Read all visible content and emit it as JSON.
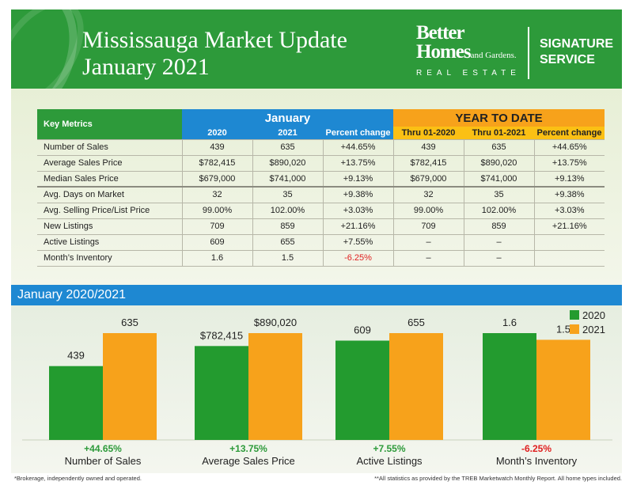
{
  "header": {
    "title_line1": "Mississauga Market Update",
    "title_line2": "January 2021",
    "logo_line1": "Better",
    "logo_line2": "Homes",
    "logo_line2_small": "and Gardens.",
    "logo_line3": "REAL ESTATE",
    "signature_line1": "SIGNATURE",
    "signature_line2": "SERVICE"
  },
  "table": {
    "key_metrics_label": "Key Metrics",
    "january_label": "January",
    "ytd_label": "YEAR TO DATE",
    "columns": [
      "2020",
      "2021",
      "Percent change",
      "Thru 01-2020",
      "Thru 01-2021",
      "Percent change"
    ],
    "rows": [
      {
        "metric": "Number of Sales",
        "v": [
          "439",
          "635",
          "+44.65%",
          "439",
          "635",
          "+44.65%"
        ]
      },
      {
        "metric": "Average Sales Price",
        "v": [
          "$782,415",
          "$890,020",
          "+13.75%",
          "$782,415",
          "$890,020",
          "+13.75%"
        ]
      },
      {
        "metric": "Median Sales Price",
        "v": [
          "$679,000",
          "$741,000",
          "+9.13%",
          "$679,000",
          "$741,000",
          "+9.13%"
        ]
      },
      {
        "metric": "Avg. Days on Market",
        "v": [
          "32",
          "35",
          "+9.38%",
          "32",
          "35",
          "+9.38%"
        ]
      },
      {
        "metric": "Avg. Selling Price/List Price",
        "v": [
          "99.00%",
          "102.00%",
          "+3.03%",
          "99.00%",
          "102.00%",
          "+3.03%"
        ]
      },
      {
        "metric": "New Listings",
        "v": [
          "709",
          "859",
          "+21.16%",
          "709",
          "859",
          "+21.16%"
        ]
      },
      {
        "metric": "Active Listings",
        "v": [
          "609",
          "655",
          "+7.55%",
          "–",
          "–",
          ""
        ]
      },
      {
        "metric": "Month’s Inventory",
        "v": [
          "1.6",
          "1.5",
          "-6.25%",
          "–",
          "–",
          ""
        ]
      }
    ]
  },
  "chart_band_label": "January 2020/2021",
  "chart_data": {
    "type": "bar",
    "categories": [
      "Number of Sales",
      "Average Sales Price",
      "Active Listings",
      "Month’s Inventory"
    ],
    "series": [
      {
        "name": "2020",
        "values": [
          439,
          782415,
          609,
          1.6
        ],
        "labels": [
          "439",
          "$782,415",
          "609",
          "1.6"
        ]
      },
      {
        "name": "2021",
        "values": [
          635,
          890020,
          655,
          1.5
        ],
        "labels": [
          "635",
          "$890,020",
          "655",
          "1.5"
        ]
      }
    ],
    "percent_changes": [
      "+44.65%",
      "+13.75%",
      "+7.55%",
      "-6.25%"
    ],
    "colors": {
      "2020": "#239b2f",
      "2021": "#f7a21b",
      "positive": "#2d9a3a",
      "negative": "#e02020"
    },
    "scaling": "each category group scaled independently",
    "legend": "top-right",
    "grid": false
  },
  "footer": {
    "left": "*Brokerage, independently owned and operated.",
    "right": "**All statistics as provided by the TREB Marketwatch Monthly Report. All home types included."
  }
}
